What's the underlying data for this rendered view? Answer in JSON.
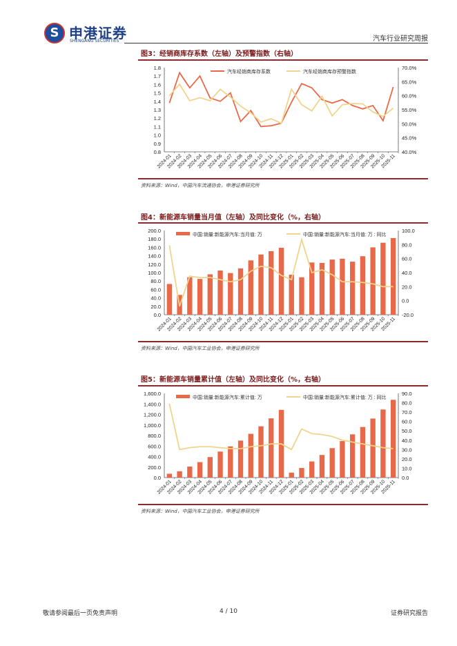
{
  "header": {
    "logo_cn": "申港证券",
    "logo_en": "SHENGANG SECURITIES",
    "report_type": "汽车行业研究周报"
  },
  "footer": {
    "disclaimer": "敬请参阅最后一页免责声明",
    "page": "4 / 10",
    "doc_type": "证券研究报告"
  },
  "colors": {
    "bar": "#e8694a",
    "line_primary": "#e8694a",
    "line_secondary": "#f0d48c",
    "title": "#7b1a1a",
    "rule": "#8b2a2a"
  },
  "figures": [
    {
      "title": "图3：经销商库存系数（左轴）及预警指数（右轴）",
      "source": "资料来源：Wind，中国汽车流通协会，申港证券研究所"
    },
    {
      "title": "图4：新能源车销量当月值（左轴）及同比变化（%，右轴）",
      "source": "资料来源：Wind，中国汽车工业协会，申港证券研究所"
    },
    {
      "title": "图5：新能源车销量累计值（左轴）及同比变化（%，右轴）",
      "source": "资料来源：Wind，中国汽车工业协会，申港证券研究所"
    }
  ],
  "chart_data": [
    {
      "type": "line",
      "categories": [
        "2024-01",
        "2024-02",
        "2024-03",
        "2024-04",
        "2024-05",
        "2024-06",
        "2024-07",
        "2024-08",
        "2024-09",
        "2024-10",
        "2024-11",
        "2024-12",
        "2025-01",
        "2025-02",
        "2025-03",
        "2025-04",
        "2025-05",
        "2025-06",
        "2025-07",
        "2025-08",
        "2025-09",
        "2025-10",
        "2025-11"
      ],
      "ylim": [
        0.8,
        1.8
      ],
      "yticks": [
        "0.8",
        "0.9",
        "1.0",
        "1.1",
        "1.2",
        "1.3",
        "1.4",
        "1.5",
        "1.6",
        "1.7",
        "1.8"
      ],
      "y2lim": [
        40,
        70
      ],
      "y2ticks": [
        "40.0%",
        "45.0%",
        "50.0%",
        "55.0%",
        "60.0%",
        "65.0%",
        "70.0%"
      ],
      "legend": "top",
      "series": [
        {
          "name": "汽车经销商库存系数",
          "kind": "line",
          "axis": "left",
          "color": "#e8694a",
          "values": [
            1.38,
            1.74,
            1.56,
            1.7,
            1.44,
            1.4,
            1.5,
            1.16,
            1.29,
            1.1,
            1.11,
            1.14,
            1.39,
            1.61,
            1.56,
            1.42,
            1.38,
            1.42,
            1.35,
            1.31,
            1.35,
            1.17,
            1.57
          ]
        },
        {
          "name": "汽车经销商库存预警指数",
          "kind": "line",
          "axis": "right",
          "color": "#f0d48c",
          "values": [
            60.0,
            64.1,
            58.2,
            59.3,
            58.2,
            62.3,
            59.5,
            56.3,
            53.9,
            50.6,
            51.8,
            50.2,
            62.3,
            56.8,
            54.6,
            59.8,
            52.8,
            56.8,
            57.2,
            57.1,
            54.2,
            52.6,
            55.6
          ]
        }
      ]
    },
    {
      "type": "bar",
      "categories": [
        "2024-01",
        "2024-02",
        "2024-03",
        "2024-04",
        "2024-05",
        "2024-06",
        "2024-07",
        "2024-08",
        "2024-09",
        "2024-10",
        "2024-11",
        "2024-12",
        "2025-01",
        "2025-02",
        "2025-03",
        "2025-04",
        "2025-05",
        "2025-06",
        "2025-07",
        "2025-08",
        "2025-09",
        "2025-10",
        "2025-11"
      ],
      "ylim": [
        0,
        200
      ],
      "yticks": [
        "0.0",
        "20.0",
        "40.0",
        "60.0",
        "80.0",
        "100.0",
        "120.0",
        "140.0",
        "160.0",
        "180.0",
        "200.0"
      ],
      "y2lim": [
        -20,
        100
      ],
      "y2ticks": [
        "-20.0",
        "0.0",
        "20.0",
        "40.0",
        "60.0",
        "80.0",
        "100.0"
      ],
      "legend": "top",
      "series": [
        {
          "name": "中国:销量:新能源汽车:当月值: 万",
          "kind": "bar",
          "axis": "left",
          "color": "#e8694a",
          "values": [
            73,
            47,
            89,
            85,
            96,
            105,
            99,
            110,
            129,
            143,
            151,
            159,
            95,
            89,
            124,
            123,
            131,
            133,
            126,
            139,
            160,
            171,
            182
          ]
        },
        {
          "name": "中国:销量:新能源汽车:当月值: 万 : 同比",
          "kind": "line",
          "axis": "right",
          "color": "#f0d48c",
          "values": [
            79,
            -8,
            35,
            33,
            33,
            30,
            27,
            30,
            42,
            49,
            47,
            36,
            30,
            87,
            40,
            44,
            37,
            27,
            27,
            26,
            24,
            20,
            20
          ]
        }
      ]
    },
    {
      "type": "bar",
      "categories": [
        "2024-01",
        "2024-02",
        "2024-03",
        "2024-04",
        "2024-05",
        "2024-06",
        "2024-07",
        "2024-08",
        "2024-09",
        "2024-10",
        "2024-11",
        "2024-12",
        "2025-01",
        "2025-02",
        "2025-03",
        "2025-04",
        "2025-05",
        "2025-06",
        "2025-07",
        "2025-08",
        "2025-09",
        "2025-10",
        "2025-11"
      ],
      "ylim": [
        0,
        1600
      ],
      "yticks": [
        "0.0",
        "200.0",
        "400.0",
        "600.0",
        "800.0",
        "1,000.0",
        "1,200.0",
        "1,400.0",
        "1,600.0"
      ],
      "y2lim": [
        0,
        90
      ],
      "y2ticks": [
        "0.0",
        "10.0",
        "20.0",
        "30.0",
        "40.0",
        "50.0",
        "60.0",
        "70.0",
        "80.0",
        "90.0"
      ],
      "legend": "top",
      "series": [
        {
          "name": "中国:销量:新能源汽车:累计值: 万",
          "kind": "bar",
          "axis": "left",
          "color": "#e8694a",
          "values": [
            73,
            120,
            209,
            294,
            390,
            494,
            593,
            703,
            832,
            975,
            1126,
            1287,
            94,
            183,
            307,
            430,
            560,
            694,
            822,
            962,
            1122,
            1294,
            1478
          ]
        },
        {
          "name": "中国:销量:新能源汽车:累计值: 万 : 同比",
          "kind": "line",
          "axis": "right",
          "color": "#f0d48c",
          "values": [
            79,
            30,
            32,
            33,
            33,
            32,
            31,
            31,
            33,
            34,
            36,
            36,
            30,
            52,
            47,
            46,
            44,
            40,
            38,
            36,
            34,
            32,
            31
          ]
        }
      ]
    }
  ]
}
